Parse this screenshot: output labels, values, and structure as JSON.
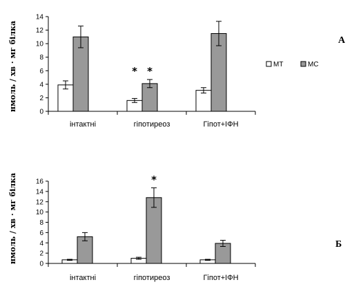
{
  "chart_data": [
    {
      "type": "bar",
      "panel_label": "А",
      "ylabel": "нмоль / хв · мг білка",
      "categories": [
        "інтактні",
        "гіпотиреоз",
        "Гіпот+ІФН"
      ],
      "ylim": [
        0,
        14
      ],
      "yticks": [
        "0",
        "2",
        "4",
        "6",
        "8",
        "10",
        "12",
        "14"
      ],
      "series": [
        {
          "name": "МТ",
          "color": "#ffffff",
          "values": [
            3.9,
            1.6,
            3.1
          ],
          "errors": [
            0.6,
            0.3,
            0.4
          ]
        },
        {
          "name": "МС",
          "color": "#999999",
          "values": [
            11.0,
            4.1,
            11.5
          ],
          "errors": [
            1.6,
            0.6,
            1.8
          ]
        }
      ],
      "significance": [
        {
          "category": 1,
          "series": 0,
          "mark": "*"
        },
        {
          "category": 1,
          "series": 1,
          "mark": "*"
        }
      ],
      "legend_position": "right",
      "grid": false
    },
    {
      "type": "bar",
      "panel_label": "Б",
      "ylabel": "нмоль / хв · мг білка",
      "categories": [
        "інтактні",
        "гіпотиреоз",
        "Гіпот+ІФН"
      ],
      "ylim": [
        0,
        16
      ],
      "yticks": [
        "0",
        "2",
        "4",
        "6",
        "8",
        "10",
        "12",
        "14",
        "16"
      ],
      "series": [
        {
          "name": "",
          "color": "#ffffff",
          "values": [
            0.7,
            1.0,
            0.7
          ],
          "errors": [
            0.1,
            0.2,
            0.1
          ]
        },
        {
          "name": "",
          "color": "#999999",
          "values": [
            5.2,
            12.8,
            3.9
          ],
          "errors": [
            0.8,
            1.9,
            0.6
          ]
        }
      ],
      "significance": [
        {
          "category": 1,
          "series": 1,
          "mark": "*"
        }
      ],
      "grid": false
    }
  ]
}
